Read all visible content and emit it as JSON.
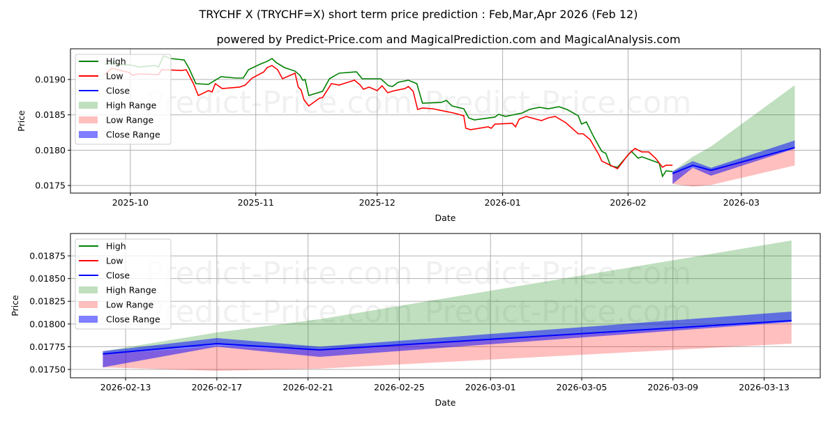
{
  "title": "TRYCHF X (TRYCHF=X) short term price prediction : Feb,Mar,Apr 2026 (Feb 12)",
  "subtitle": "powered by Predict-Price.com and MagicalPrediction.com and MagicalAnalysis.com",
  "watermark": "Predict-Price.com",
  "colors": {
    "high": "#008000",
    "low": "#ff0000",
    "close": "#0000ff",
    "high_range": "#a6d4a6",
    "low_range": "#ffaaaa",
    "close_range": "#7070ff"
  },
  "chart_data": [
    {
      "type": "line",
      "name": "history-and-forecast",
      "x_origin": "2025-10-01",
      "x_unit": "days since x_origin",
      "xlabel": "Date",
      "ylabel": "Price",
      "xlim": [
        -14.8,
        170.5
      ],
      "ylim": [
        0.017393,
        0.019434
      ],
      "grid": true,
      "legend": "top-left",
      "x_ticks": [
        {
          "v": 0,
          "label": "2025-10"
        },
        {
          "v": 31,
          "label": "2025-11"
        },
        {
          "v": 61,
          "label": "2025-12"
        },
        {
          "v": 92,
          "label": "2026-01"
        },
        {
          "v": 123,
          "label": "2026-02"
        },
        {
          "v": 151,
          "label": "2026-03"
        }
      ],
      "y_ticks": [
        {
          "v": 0.0175,
          "label": "0.0175"
        },
        {
          "v": 0.018,
          "label": "0.0180"
        },
        {
          "v": 0.0185,
          "label": "0.0185"
        },
        {
          "v": 0.019,
          "label": "0.0190"
        }
      ],
      "forecast_offset": 134,
      "high": [
        [
          -6.3,
          0.019217
        ],
        [
          -4.6,
          0.019237
        ],
        [
          -2.6,
          0.019207
        ],
        [
          -0.3,
          0.019207
        ],
        [
          2.2,
          0.019177
        ],
        [
          6.0,
          0.019197
        ],
        [
          7.0,
          0.019177
        ],
        [
          8.2,
          0.019335
        ],
        [
          9.9,
          0.019296
        ],
        [
          13.3,
          0.019276
        ],
        [
          14.5,
          0.019158
        ],
        [
          16.2,
          0.018941
        ],
        [
          19.3,
          0.018931
        ],
        [
          22.4,
          0.019039
        ],
        [
          26.2,
          0.01902
        ],
        [
          27.9,
          0.01902
        ],
        [
          29.2,
          0.019138
        ],
        [
          32.1,
          0.019217
        ],
        [
          33.8,
          0.019256
        ],
        [
          35.0,
          0.019296
        ],
        [
          36.1,
          0.019237
        ],
        [
          38.1,
          0.019168
        ],
        [
          40.7,
          0.019118
        ],
        [
          41.9,
          0.019059
        ],
        [
          42.6,
          0.01899
        ],
        [
          43.2,
          0.019
        ],
        [
          44.1,
          0.018773
        ],
        [
          47.5,
          0.018832
        ],
        [
          49.2,
          0.01901
        ],
        [
          51.6,
          0.019089
        ],
        [
          55.9,
          0.019108
        ],
        [
          57.3,
          0.01901
        ],
        [
          61.9,
          0.01901
        ],
        [
          63.8,
          0.018911
        ],
        [
          64.8,
          0.018901
        ],
        [
          66.2,
          0.018961
        ],
        [
          68.7,
          0.01899
        ],
        [
          70.8,
          0.018941
        ],
        [
          72.2,
          0.018665
        ],
        [
          76.8,
          0.018675
        ],
        [
          78.1,
          0.018704
        ],
        [
          79.5,
          0.018625
        ],
        [
          82.4,
          0.018586
        ],
        [
          83.6,
          0.018458
        ],
        [
          85.0,
          0.018428
        ],
        [
          90.1,
          0.018468
        ],
        [
          91.0,
          0.018507
        ],
        [
          92.7,
          0.018477
        ],
        [
          96.9,
          0.018527
        ],
        [
          98.6,
          0.018576
        ],
        [
          101.1,
          0.018606
        ],
        [
          103.3,
          0.018586
        ],
        [
          105.9,
          0.018615
        ],
        [
          107.9,
          0.018576
        ],
        [
          110.7,
          0.018487
        ],
        [
          111.5,
          0.018369
        ],
        [
          112.7,
          0.018399
        ],
        [
          114.4,
          0.018201
        ],
        [
          116.5,
          0.017984
        ],
        [
          117.5,
          0.017955
        ],
        [
          118.7,
          0.017777
        ],
        [
          120.4,
          0.017758
        ],
        [
          123.8,
          0.017984
        ],
        [
          125.5,
          0.017886
        ],
        [
          126.4,
          0.017906
        ],
        [
          130.7,
          0.017817
        ],
        [
          131.5,
          0.017629
        ],
        [
          132.4,
          0.017708
        ],
        [
          134.0,
          0.017698
        ]
      ],
      "low": [
        [
          -6.3,
          0.019069
        ],
        [
          -4.6,
          0.019158
        ],
        [
          -0.3,
          0.019099
        ],
        [
          0.5,
          0.019059
        ],
        [
          2.2,
          0.019079
        ],
        [
          7.0,
          0.019069
        ],
        [
          7.7,
          0.019138
        ],
        [
          12.8,
          0.019128
        ],
        [
          13.8,
          0.019138
        ],
        [
          15.6,
          0.018941
        ],
        [
          16.8,
          0.018773
        ],
        [
          19.3,
          0.018842
        ],
        [
          20.2,
          0.018823
        ],
        [
          21.0,
          0.018941
        ],
        [
          22.7,
          0.018872
        ],
        [
          27.0,
          0.018892
        ],
        [
          28.4,
          0.018921
        ],
        [
          30.1,
          0.01902
        ],
        [
          33.0,
          0.019108
        ],
        [
          33.8,
          0.019168
        ],
        [
          35.0,
          0.019197
        ],
        [
          36.4,
          0.019138
        ],
        [
          37.6,
          0.01901
        ],
        [
          40.7,
          0.019089
        ],
        [
          41.5,
          0.018892
        ],
        [
          42.2,
          0.018852
        ],
        [
          42.9,
          0.018714
        ],
        [
          44.1,
          0.018625
        ],
        [
          46.7,
          0.018734
        ],
        [
          47.5,
          0.018744
        ],
        [
          49.7,
          0.018941
        ],
        [
          51.6,
          0.018921
        ],
        [
          55.4,
          0.01899
        ],
        [
          56.8,
          0.018921
        ],
        [
          57.6,
          0.018862
        ],
        [
          59.0,
          0.018892
        ],
        [
          61.0,
          0.018842
        ],
        [
          62.2,
          0.018911
        ],
        [
          63.6,
          0.018813
        ],
        [
          65.3,
          0.018842
        ],
        [
          67.9,
          0.018872
        ],
        [
          68.7,
          0.018901
        ],
        [
          69.9,
          0.018832
        ],
        [
          71.0,
          0.018576
        ],
        [
          72.2,
          0.018596
        ],
        [
          74.7,
          0.018586
        ],
        [
          77.3,
          0.018556
        ],
        [
          79.8,
          0.018527
        ],
        [
          82.4,
          0.018487
        ],
        [
          82.9,
          0.01831
        ],
        [
          84.1,
          0.01829
        ],
        [
          88.4,
          0.01833
        ],
        [
          89.2,
          0.01831
        ],
        [
          90.1,
          0.018369
        ],
        [
          94.4,
          0.018379
        ],
        [
          95.2,
          0.01833
        ],
        [
          96.1,
          0.018438
        ],
        [
          97.8,
          0.018477
        ],
        [
          101.6,
          0.018418
        ],
        [
          103.3,
          0.018458
        ],
        [
          105.0,
          0.018477
        ],
        [
          107.6,
          0.018389
        ],
        [
          110.7,
          0.018231
        ],
        [
          111.9,
          0.018231
        ],
        [
          113.6,
          0.018152
        ],
        [
          115.8,
          0.017935
        ],
        [
          116.5,
          0.017846
        ],
        [
          117.9,
          0.017807
        ],
        [
          120.4,
          0.017738
        ],
        [
          123.0,
          0.017935
        ],
        [
          124.7,
          0.018024
        ],
        [
          126.4,
          0.017975
        ],
        [
          128.1,
          0.017975
        ],
        [
          129.8,
          0.017886
        ],
        [
          131.5,
          0.017758
        ],
        [
          132.4,
          0.017787
        ],
        [
          134.0,
          0.017787
        ]
      ]
    },
    {
      "type": "line",
      "name": "forecast-detail",
      "x_origin": "2026-02-12",
      "x_unit": "days since x_origin",
      "xlabel": "Date",
      "ylabel": "Price",
      "xlim": [
        -1.42,
        31.46
      ],
      "ylim": [
        0.017408,
        0.018996
      ],
      "grid": true,
      "legend": "top-left",
      "x_ticks": [
        {
          "v": 1,
          "label": "2026-02-13"
        },
        {
          "v": 5,
          "label": "2026-02-17"
        },
        {
          "v": 9,
          "label": "2026-02-21"
        },
        {
          "v": 13,
          "label": "2026-02-25"
        },
        {
          "v": 17,
          "label": "2026-03-01"
        },
        {
          "v": 21,
          "label": "2026-03-05"
        },
        {
          "v": 25,
          "label": "2026-03-09"
        },
        {
          "v": 29,
          "label": "2026-03-13"
        }
      ],
      "y_ticks": [
        {
          "v": 0.0175,
          "label": "0.01750"
        },
        {
          "v": 0.01775,
          "label": "0.01775"
        },
        {
          "v": 0.018,
          "label": "0.01800"
        },
        {
          "v": 0.01825,
          "label": "0.01825"
        },
        {
          "v": 0.0185,
          "label": "0.01850"
        },
        {
          "v": 0.01875,
          "label": "0.01875"
        }
      ]
    }
  ],
  "forecast": {
    "x": [
      0,
      5,
      9.5,
      30.2
    ],
    "close": [
      0.01767,
      0.017784,
      0.017715,
      0.018037
    ],
    "close_range_upper": [
      0.0177,
      0.017845,
      0.01775,
      0.018137
    ],
    "close_range_lower": [
      0.017523,
      0.01775,
      0.017638,
      0.018022
    ],
    "high_range_upper": [
      0.0177,
      0.017907,
      0.018052,
      0.018919
    ],
    "high_range_lower": [
      0.01767,
      0.017784,
      0.017715,
      0.018037
    ],
    "low_range_upper": [
      0.01767,
      0.01775,
      0.017715,
      0.01802
    ],
    "low_range_lower": [
      0.017523,
      0.017485,
      0.017508,
      0.017784
    ]
  },
  "legend": [
    "High",
    "Low",
    "Close",
    "High Range",
    "Low Range",
    "Close Range"
  ]
}
